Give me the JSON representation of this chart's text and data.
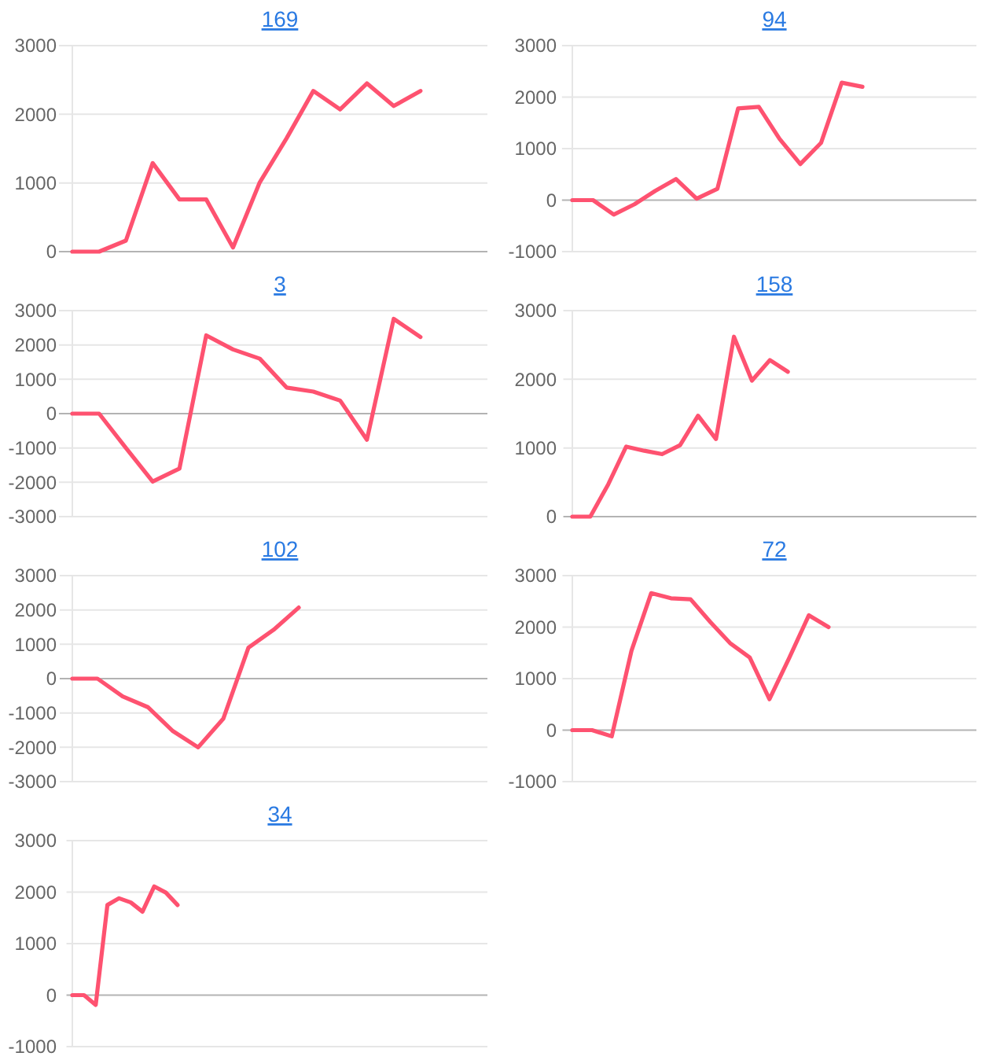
{
  "chart_data": [
    {
      "type": "line",
      "title": "169",
      "categories": [
        null,
        null,
        null,
        null,
        null,
        null,
        null,
        null,
        null,
        null,
        null,
        null,
        null,
        null,
        null,
        null
      ],
      "values": [
        0,
        0,
        160,
        1290,
        760,
        760,
        60,
        1010,
        1650,
        2340,
        2070,
        2450,
        2120,
        2340,
        null,
        null
      ],
      "color": "#fe5270",
      "ylim": [
        0,
        3000
      ],
      "yticks": [
        0,
        1000,
        2000,
        3000
      ],
      "grid": "y",
      "tick_labels": "y"
    },
    {
      "type": "line",
      "title": "94",
      "categories": [
        null,
        null,
        null,
        null,
        null,
        null,
        null,
        null,
        null,
        null,
        null,
        null,
        null,
        null,
        null,
        null,
        null,
        null,
        null,
        null
      ],
      "values": [
        0,
        0,
        -280,
        -80,
        180,
        410,
        30,
        220,
        1780,
        1810,
        1190,
        700,
        1110,
        2280,
        2200,
        null,
        null,
        null,
        null,
        null
      ],
      "color": "#fe5270",
      "ylim": [
        -1000,
        3000
      ],
      "yticks": [
        -1000,
        0,
        1000,
        2000,
        3000
      ],
      "grid": "y",
      "tick_labels": "y"
    },
    {
      "type": "line",
      "title": "3",
      "categories": [
        null,
        null,
        null,
        null,
        null,
        null,
        null,
        null,
        null,
        null,
        null,
        null,
        null,
        null,
        null,
        null
      ],
      "values": [
        0,
        0,
        -1000,
        -1980,
        -1600,
        2280,
        1870,
        1600,
        760,
        640,
        380,
        -760,
        2760,
        2230,
        null,
        null
      ],
      "color": "#fe5270",
      "ylim": [
        -3000,
        3000
      ],
      "yticks": [
        -3000,
        -2000,
        -1000,
        0,
        1000,
        2000,
        3000
      ],
      "grid": "y",
      "tick_labels": "y"
    },
    {
      "type": "line",
      "title": "158",
      "categories": [
        null,
        null,
        null,
        null,
        null,
        null,
        null,
        null,
        null,
        null,
        null,
        null,
        null,
        null,
        null,
        null,
        null,
        null,
        null,
        null,
        null,
        null,
        null
      ],
      "values": [
        0,
        0,
        470,
        1020,
        960,
        910,
        1040,
        1470,
        1130,
        2620,
        1980,
        2280,
        2110,
        null,
        null,
        null,
        null,
        null,
        null,
        null,
        null,
        null,
        null
      ],
      "color": "#fe5270",
      "ylim": [
        0,
        3000
      ],
      "yticks": [
        0,
        1000,
        2000,
        3000
      ],
      "grid": "y",
      "tick_labels": "y"
    },
    {
      "type": "line",
      "title": "102",
      "categories": [
        null,
        null,
        null,
        null,
        null,
        null,
        null,
        null,
        null,
        null,
        null,
        null,
        null,
        null,
        null,
        null,
        null
      ],
      "values": [
        0,
        0,
        -520,
        -830,
        -1530,
        -2000,
        -1170,
        900,
        1420,
        2070,
        null,
        null,
        null,
        null,
        null,
        null,
        null
      ],
      "color": "#fe5270",
      "ylim": [
        -3000,
        3000
      ],
      "yticks": [
        -3000,
        -2000,
        -1000,
        0,
        1000,
        2000,
        3000
      ],
      "grid": "y",
      "tick_labels": "y"
    },
    {
      "type": "line",
      "title": "72",
      "categories": [
        null,
        null,
        null,
        null,
        null,
        null,
        null,
        null,
        null,
        null,
        null,
        null,
        null,
        null,
        null,
        null,
        null,
        null,
        null,
        null,
        null
      ],
      "values": [
        0,
        0,
        -120,
        1540,
        2660,
        2560,
        2540,
        2100,
        1690,
        1410,
        600,
        1400,
        2230,
        2000,
        null,
        null,
        null,
        null,
        null,
        null,
        null
      ],
      "color": "#fe5270",
      "ylim": [
        -1000,
        3000
      ],
      "yticks": [
        -1000,
        0,
        1000,
        2000,
        3000
      ],
      "grid": "y",
      "tick_labels": "y"
    },
    {
      "type": "line",
      "title": "34",
      "categories": [
        null,
        null,
        null,
        null,
        null,
        null,
        null,
        null,
        null,
        null,
        null,
        null,
        null,
        null,
        null,
        null,
        null,
        null,
        null,
        null,
        null,
        null,
        null,
        null,
        null,
        null,
        null,
        null,
        null,
        null,
        null,
        null,
        null,
        null,
        null,
        null
      ],
      "values": [
        0,
        0,
        -190,
        1750,
        1880,
        1800,
        1620,
        2110,
        1990,
        1750,
        null,
        null,
        null,
        null,
        null,
        null,
        null,
        null,
        null,
        null,
        null,
        null,
        null,
        null,
        null,
        null,
        null,
        null,
        null,
        null,
        null,
        null,
        null,
        null,
        null,
        null
      ],
      "color": "#fe5270",
      "ylim": [
        -1000,
        3000
      ],
      "yticks": [
        -1000,
        0,
        1000,
        2000,
        3000
      ],
      "grid": "y",
      "tick_labels": "y"
    }
  ]
}
